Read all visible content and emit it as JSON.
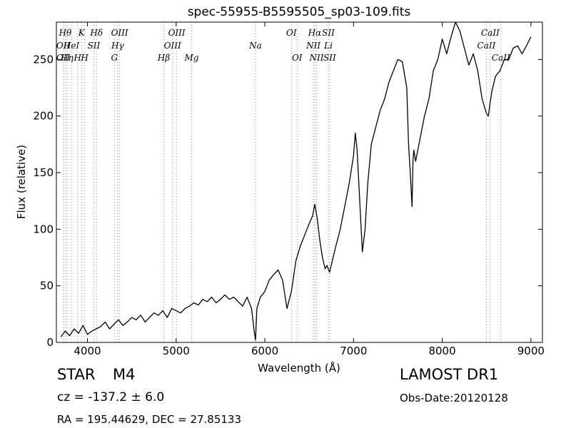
{
  "chart_data": {
    "type": "line",
    "title": "spec-55955-B5595505_sp03-109.fits",
    "xlabel": "Wavelength (Å)",
    "ylabel": "Flux (relative)",
    "xlim": [
      3650,
      9130
    ],
    "ylim": [
      0,
      283
    ],
    "xticks": [
      4000,
      5000,
      6000,
      7000,
      8000,
      9000
    ],
    "yticks": [
      0,
      50,
      100,
      150,
      200,
      250
    ],
    "grid": false,
    "line_color": "#000000",
    "marker_color": "#5fb35f",
    "series": [
      {
        "x": [
          3700,
          3750,
          3800,
          3850,
          3900,
          3950,
          4000,
          4050,
          4100,
          4150,
          4200,
          4250,
          4300,
          4350,
          4400,
          4450,
          4500,
          4550,
          4600,
          4650,
          4700,
          4750,
          4800,
          4850,
          4900,
          4950,
          5000,
          5050,
          5100,
          5150,
          5200,
          5250,
          5300,
          5350,
          5400,
          5450,
          5500,
          5550,
          5600,
          5650,
          5700,
          5750,
          5800,
          5850,
          5880,
          5895,
          5910,
          5950,
          6000,
          6050,
          6100,
          6150,
          6200,
          6250,
          6300,
          6350,
          6400,
          6450,
          6500,
          6540,
          6563,
          6590,
          6620,
          6650,
          6680,
          6700,
          6730,
          6760,
          6800,
          6850,
          6900,
          6950,
          7000,
          7020,
          7040,
          7060,
          7080,
          7100,
          7130,
          7160,
          7200,
          7250,
          7300,
          7350,
          7400,
          7450,
          7500,
          7550,
          7600,
          7620,
          7640,
          7660,
          7670,
          7680,
          7700,
          7750,
          7800,
          7850,
          7900,
          7950,
          8000,
          8050,
          8100,
          8150,
          8200,
          8250,
          8300,
          8350,
          8400,
          8450,
          8500,
          8520,
          8540,
          8560,
          8600,
          8650,
          8700,
          8750,
          8800,
          8850,
          8900,
          8950,
          9000
        ],
        "y": [
          5,
          10,
          6,
          12,
          8,
          15,
          7,
          10,
          12,
          14,
          18,
          12,
          16,
          20,
          15,
          18,
          22,
          20,
          24,
          18,
          22,
          26,
          24,
          28,
          22,
          30,
          28,
          26,
          30,
          32,
          35,
          33,
          38,
          36,
          40,
          35,
          38,
          42,
          38,
          40,
          36,
          32,
          40,
          30,
          10,
          2,
          30,
          40,
          45,
          55,
          60,
          64,
          55,
          30,
          45,
          72,
          85,
          95,
          105,
          112,
          122,
          110,
          90,
          75,
          65,
          68,
          62,
          72,
          85,
          100,
          120,
          140,
          165,
          185,
          170,
          140,
          110,
          80,
          100,
          140,
          175,
          190,
          205,
          215,
          230,
          240,
          250,
          248,
          225,
          175,
          150,
          120,
          160,
          170,
          160,
          180,
          200,
          215,
          240,
          250,
          268,
          255,
          270,
          283,
          275,
          260,
          245,
          255,
          240,
          215,
          202,
          200,
          212,
          222,
          235,
          240,
          250,
          250,
          260,
          262,
          255,
          262,
          270
        ]
      }
    ],
    "line_markers": [
      {
        "x": 3727,
        "label": "OII",
        "row": 2
      },
      {
        "x": 3727,
        "label": "OII",
        "row": 3
      },
      {
        "x": 3750,
        "label": "Hθ",
        "row": 1
      },
      {
        "x": 3771,
        "label": "Hη",
        "row": 3
      },
      {
        "x": 3820,
        "label": "HeI",
        "row": 2
      },
      {
        "x": 3889,
        "label": "H",
        "row": 3
      },
      {
        "x": 3934,
        "label": "K",
        "row": 1
      },
      {
        "x": 3969,
        "label": "H",
        "row": 3
      },
      {
        "x": 4072,
        "label": "SII",
        "row": 2
      },
      {
        "x": 4102,
        "label": "Hδ",
        "row": 1
      },
      {
        "x": 4304,
        "label": "G",
        "row": 3
      },
      {
        "x": 4341,
        "label": "Hγ",
        "row": 2
      },
      {
        "x": 4363,
        "label": "OIII",
        "row": 1
      },
      {
        "x": 4861,
        "label": "Hβ",
        "row": 3
      },
      {
        "x": 4959,
        "label": "OIII",
        "row": 2
      },
      {
        "x": 5007,
        "label": "OIII",
        "row": 1
      },
      {
        "x": 5175,
        "label": "Mg",
        "row": 3
      },
      {
        "x": 5894,
        "label": "Na",
        "row": 2
      },
      {
        "x": 6300,
        "label": "OI",
        "row": 1
      },
      {
        "x": 6364,
        "label": "OI",
        "row": 3
      },
      {
        "x": 6548,
        "label": "NII",
        "row": 2
      },
      {
        "x": 6563,
        "label": "Hα",
        "row": 1
      },
      {
        "x": 6583,
        "label": "NII",
        "row": 3
      },
      {
        "x": 6716,
        "label": "SII",
        "row": 1
      },
      {
        "x": 6716,
        "label": "Li",
        "row": 2
      },
      {
        "x": 6731,
        "label": "SII",
        "row": 3
      },
      {
        "x": 8498,
        "label": "CaII",
        "row": 2
      },
      {
        "x": 8542,
        "label": "CaII",
        "row": 1
      },
      {
        "x": 8662,
        "label": "CaII",
        "row": 3
      }
    ]
  },
  "info": {
    "class": "STAR",
    "subclass": "M4",
    "survey": "LAMOST DR1",
    "cz": "cz = -137.2 ± 6.0",
    "obs_date": "Obs-Date:20120128",
    "radec": "RA = 195.44629, DEC = 27.85133"
  }
}
